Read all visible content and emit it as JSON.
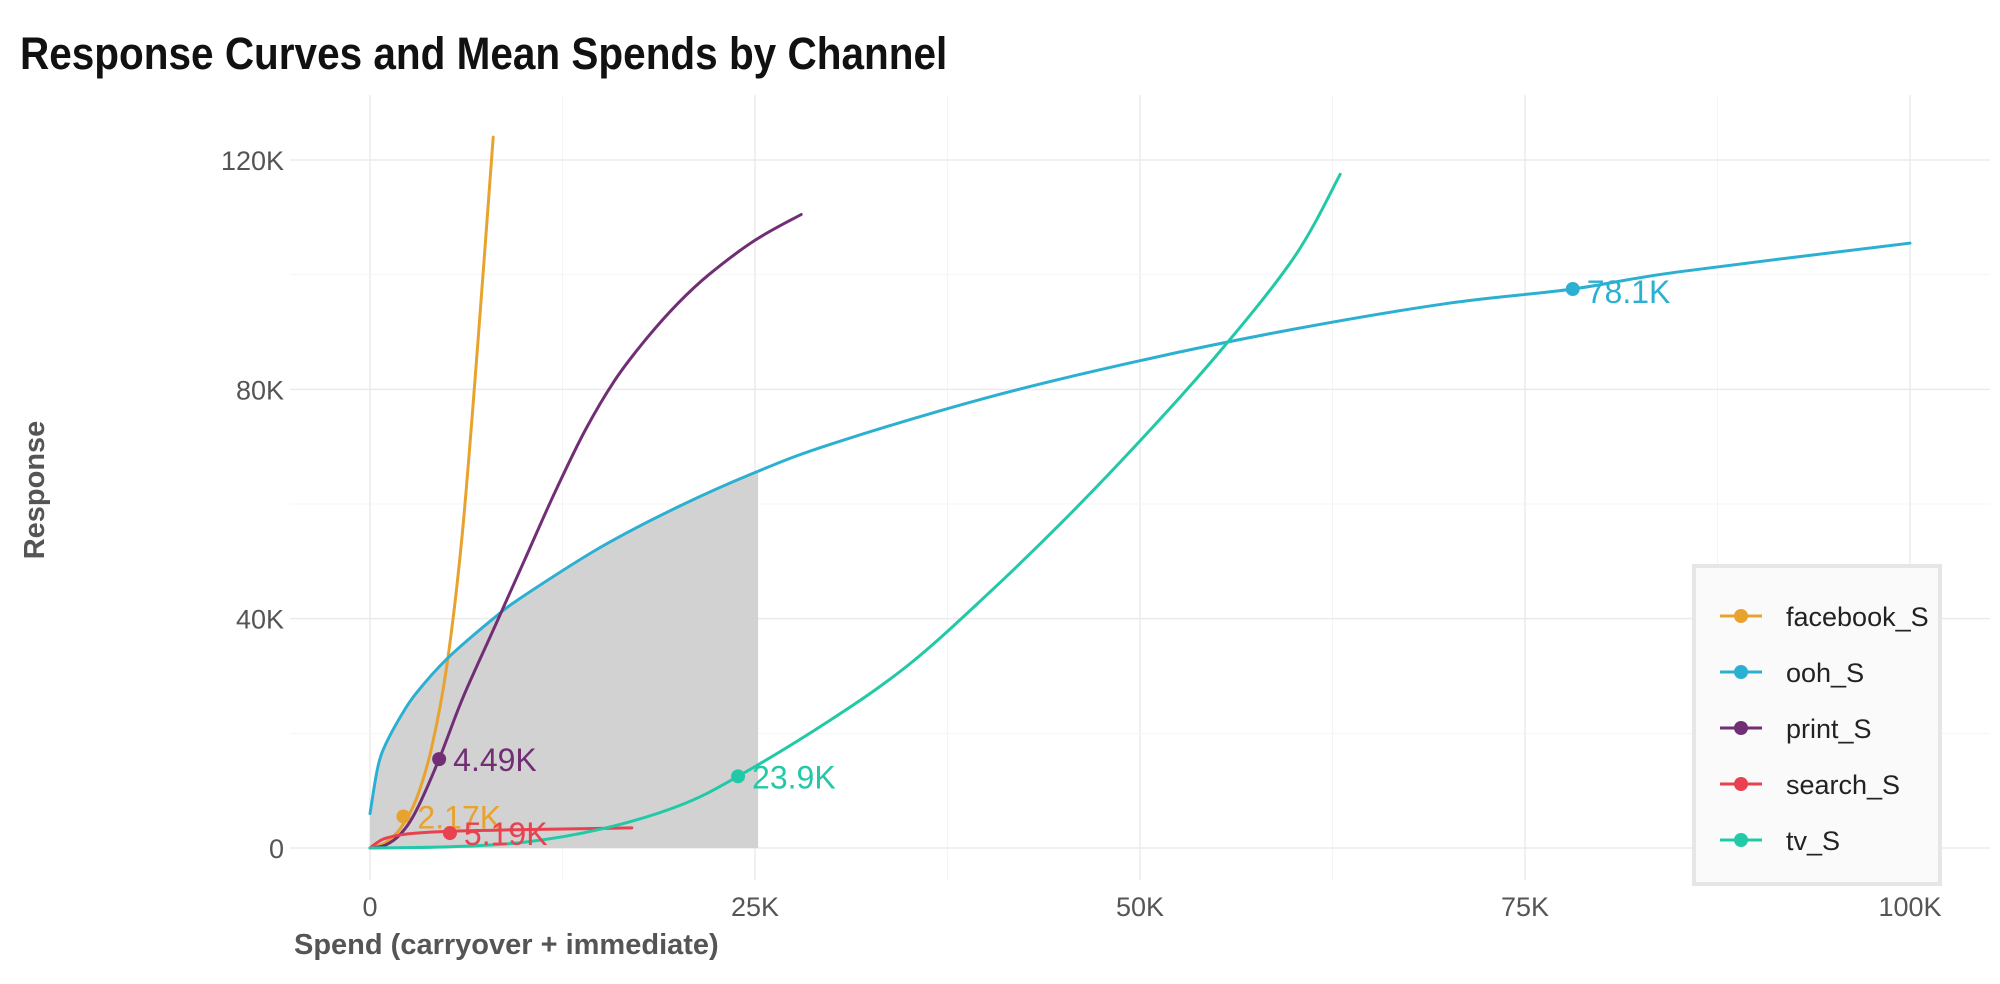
{
  "chart_data": {
    "type": "line",
    "title": "Response Curves and Mean Spends by Channel",
    "xlabel": "Spend (carryover + immediate)",
    "ylabel": "Response",
    "xlim": [
      -5000,
      105000
    ],
    "ylim": [
      -6000,
      132000
    ],
    "x_ticks": [
      0,
      25000,
      50000,
      75000,
      100000
    ],
    "x_tick_labels": [
      "0",
      "25K",
      "50K",
      "75K",
      "100K"
    ],
    "y_ticks": [
      0,
      40000,
      80000,
      120000
    ],
    "y_tick_labels": [
      "0",
      "40K",
      "80K",
      "120K"
    ],
    "grid": true,
    "legend_position": "bottom-right",
    "shaded_region": {
      "x_start": 0,
      "x_end": 25200,
      "under_series": "ooh_S",
      "color": "#d0d0d0"
    },
    "series": [
      {
        "name": "facebook_S",
        "color": "#e8a22e",
        "points": [
          [
            0,
            0
          ],
          [
            1000,
            900
          ],
          [
            2000,
            3500
          ],
          [
            3000,
            8500
          ],
          [
            4000,
            17500
          ],
          [
            5000,
            32000
          ],
          [
            6000,
            55000
          ],
          [
            7000,
            88000
          ],
          [
            8000,
            124000
          ]
        ],
        "mean_spend": {
          "x": 2170,
          "y": 5500,
          "label": "2.17K"
        }
      },
      {
        "name": "ooh_S",
        "color": "#2cb0d2",
        "points": [
          [
            0,
            6000
          ],
          [
            500,
            14000
          ],
          [
            1000,
            18000
          ],
          [
            2000,
            23000
          ],
          [
            3000,
            27000
          ],
          [
            5000,
            33000
          ],
          [
            8000,
            40000
          ],
          [
            10000,
            44000
          ],
          [
            15000,
            52500
          ],
          [
            20000,
            59500
          ],
          [
            25000,
            65500
          ],
          [
            30000,
            70500
          ],
          [
            40000,
            78500
          ],
          [
            50000,
            85000
          ],
          [
            60000,
            90500
          ],
          [
            70000,
            95000
          ],
          [
            78100,
            97500
          ],
          [
            85000,
            100500
          ],
          [
            100000,
            105500
          ]
        ],
        "mean_spend": {
          "x": 78100,
          "y": 97500,
          "label": "78.1K"
        }
      },
      {
        "name": "print_S",
        "color": "#722e74",
        "points": [
          [
            0,
            0
          ],
          [
            1000,
            500
          ],
          [
            2000,
            2500
          ],
          [
            3000,
            6500
          ],
          [
            4490,
            15500
          ],
          [
            6000,
            26000
          ],
          [
            8000,
            38000
          ],
          [
            10000,
            50000
          ],
          [
            12000,
            62000
          ],
          [
            14000,
            73000
          ],
          [
            16000,
            82000
          ],
          [
            18000,
            89000
          ],
          [
            20000,
            95000
          ],
          [
            22000,
            100000
          ],
          [
            25000,
            106000
          ],
          [
            28000,
            110500
          ]
        ],
        "mean_spend": {
          "x": 4490,
          "y": 15500,
          "label": "4.49K"
        }
      },
      {
        "name": "search_S",
        "color": "#e8414f",
        "points": [
          [
            0,
            0
          ],
          [
            500,
            1000
          ],
          [
            1000,
            1700
          ],
          [
            2000,
            2300
          ],
          [
            3000,
            2600
          ],
          [
            5000,
            2900
          ],
          [
            8000,
            3100
          ],
          [
            12000,
            3300
          ],
          [
            17000,
            3500
          ]
        ],
        "mean_spend": {
          "x": 5190,
          "y": 2600,
          "label": "5.19K"
        }
      },
      {
        "name": "tv_S",
        "color": "#22c9a7",
        "points": [
          [
            0,
            0
          ],
          [
            5000,
            200
          ],
          [
            10000,
            1000
          ],
          [
            15000,
            3300
          ],
          [
            20000,
            7300
          ],
          [
            23900,
            12500
          ],
          [
            30000,
            22500
          ],
          [
            35000,
            32000
          ],
          [
            40000,
            44000
          ],
          [
            45000,
            57000
          ],
          [
            50000,
            71000
          ],
          [
            55000,
            86000
          ],
          [
            60000,
            103000
          ],
          [
            63000,
            117500
          ]
        ],
        "mean_spend": {
          "x": 23900,
          "y": 12500,
          "label": "23.9K"
        }
      }
    ]
  }
}
